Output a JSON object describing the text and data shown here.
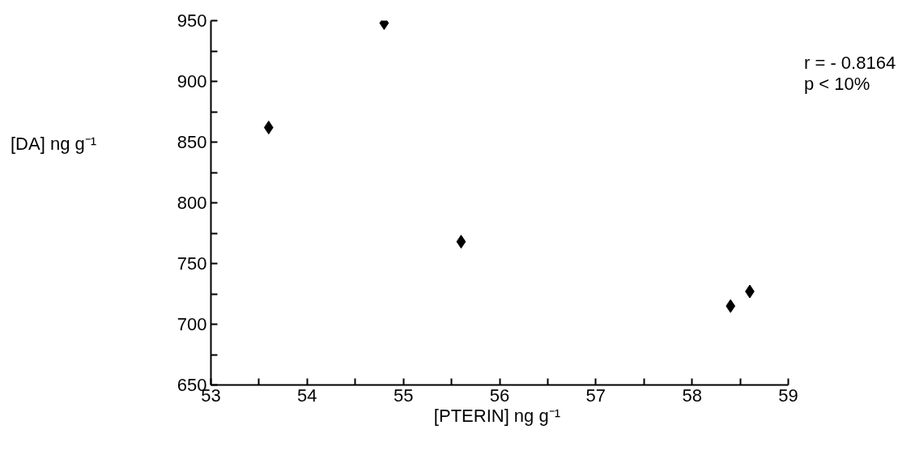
{
  "chart_data": {
    "type": "scatter",
    "x": [
      53.6,
      54.8,
      55.6,
      58.4,
      58.6
    ],
    "series": [
      {
        "color": "#000000",
        "values": [
          862,
          948,
          768,
          715,
          727
        ]
      }
    ],
    "xlabel": "[PTERIN]  ng g⁻¹",
    "ylabel": "[DA] ng g⁻¹",
    "xlim": [
      53,
      59
    ],
    "ylim": [
      650,
      950
    ],
    "xticks": [
      53,
      {
        "value": 53.5,
        "label": null
      },
      54,
      {
        "value": 54.5,
        "label": null
      },
      55,
      {
        "value": 55.5,
        "label": null
      },
      56,
      {
        "value": 56.5,
        "label": null
      },
      57,
      {
        "value": 57.5,
        "label": null
      },
      58,
      {
        "value": 58.5,
        "label": null
      },
      59
    ],
    "yticks": [
      650,
      {
        "value": 675,
        "label": null
      },
      700,
      {
        "value": 725,
        "label": null
      },
      750,
      {
        "value": 775,
        "label": null
      },
      800,
      {
        "value": 825,
        "label": null
      },
      850,
      {
        "value": 875,
        "label": null
      },
      900,
      {
        "value": 925,
        "label": null
      },
      950
    ],
    "annotations": [
      "r = - 0.8164",
      "p < 10%"
    ],
    "marker": "diamond",
    "grid": false
  }
}
